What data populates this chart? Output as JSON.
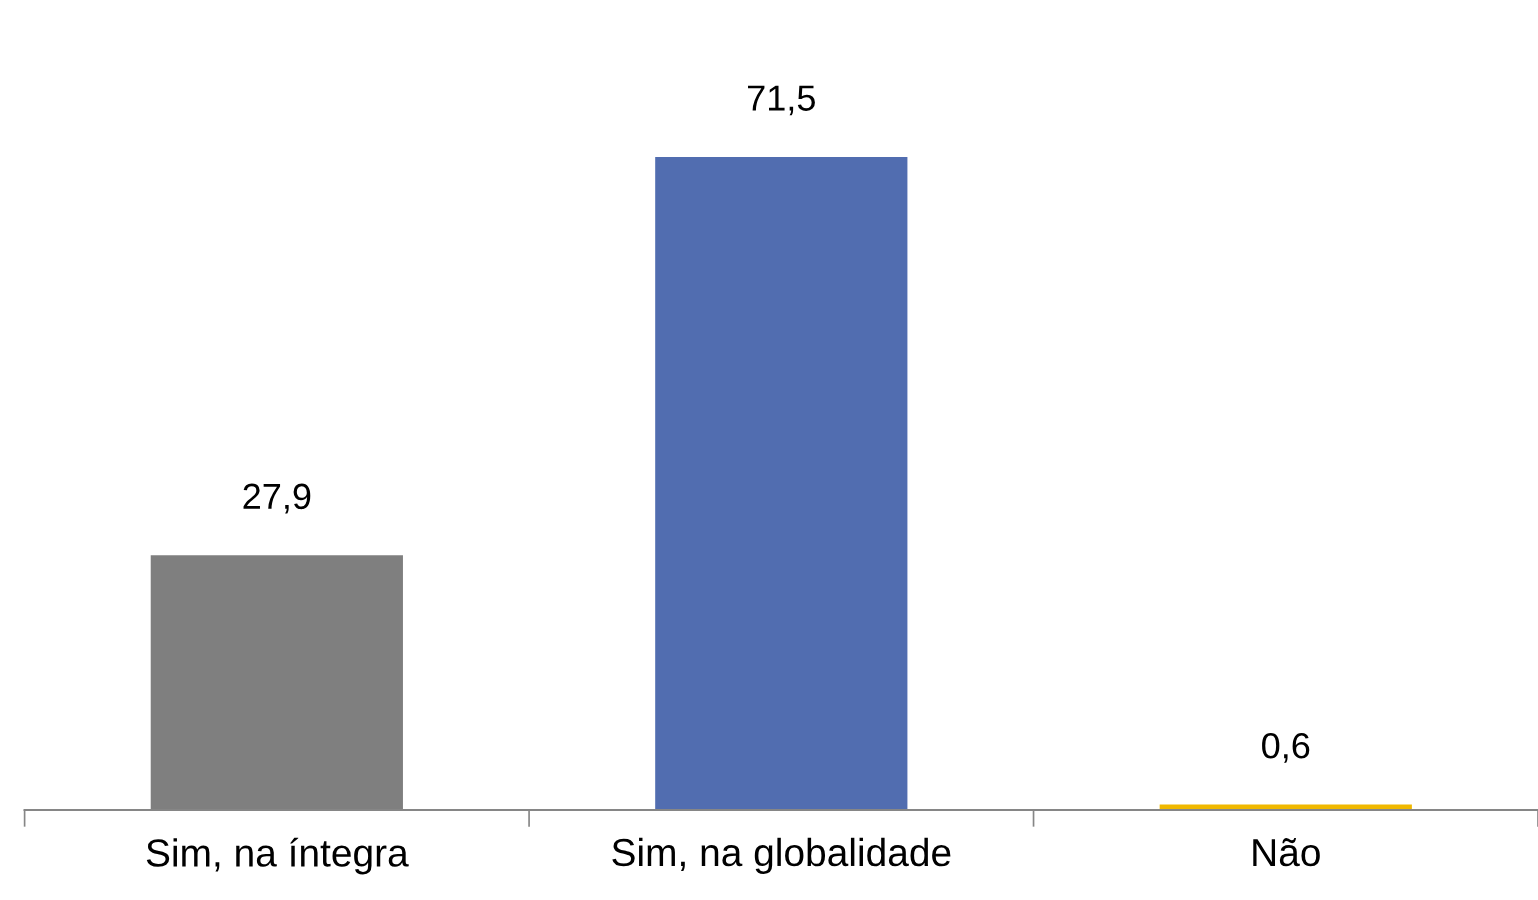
{
  "chart_data": {
    "type": "bar",
    "categories": [
      "Sim, na íntegra",
      "Sim, na globalidade",
      "Não"
    ],
    "values": [
      27.9,
      71.5,
      0.6
    ],
    "colors": [
      "#7f7f7f",
      "#516db0",
      "#f0b800"
    ],
    "value_labels": [
      "27,9",
      "71,5",
      "0,6"
    ]
  }
}
